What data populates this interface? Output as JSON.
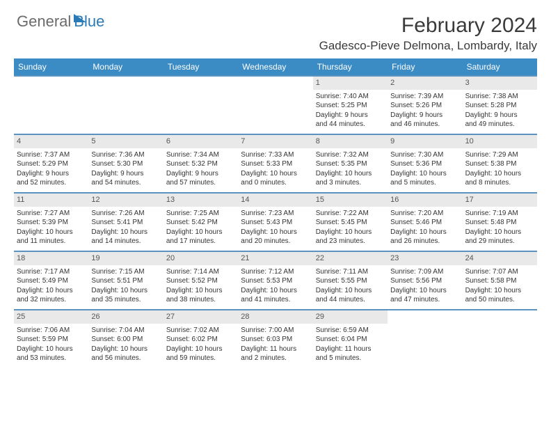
{
  "brand": {
    "word1": "General",
    "word2": "Blue"
  },
  "title": "February 2024",
  "location": "Gadesco-Pieve Delmona, Lombardy, Italy",
  "colors": {
    "header_bg": "#3b8bc4",
    "week_border": "#5b92bf",
    "daynum_bg": "#e9e9e9",
    "brand_blue": "#2a7ab8",
    "brand_gray": "#6b6b6b"
  },
  "typography": {
    "title_fontsize": 30,
    "location_fontsize": 17,
    "weekday_fontsize": 12,
    "cell_fontsize": 10
  },
  "weekdays": [
    "Sunday",
    "Monday",
    "Tuesday",
    "Wednesday",
    "Thursday",
    "Friday",
    "Saturday"
  ],
  "weeks": [
    [
      {
        "empty": true
      },
      {
        "empty": true
      },
      {
        "empty": true
      },
      {
        "empty": true
      },
      {
        "num": "1",
        "sunrise": "Sunrise: 7:40 AM",
        "sunset": "Sunset: 5:25 PM",
        "day1": "Daylight: 9 hours",
        "day2": "and 44 minutes."
      },
      {
        "num": "2",
        "sunrise": "Sunrise: 7:39 AM",
        "sunset": "Sunset: 5:26 PM",
        "day1": "Daylight: 9 hours",
        "day2": "and 46 minutes."
      },
      {
        "num": "3",
        "sunrise": "Sunrise: 7:38 AM",
        "sunset": "Sunset: 5:28 PM",
        "day1": "Daylight: 9 hours",
        "day2": "and 49 minutes."
      }
    ],
    [
      {
        "num": "4",
        "sunrise": "Sunrise: 7:37 AM",
        "sunset": "Sunset: 5:29 PM",
        "day1": "Daylight: 9 hours",
        "day2": "and 52 minutes."
      },
      {
        "num": "5",
        "sunrise": "Sunrise: 7:36 AM",
        "sunset": "Sunset: 5:30 PM",
        "day1": "Daylight: 9 hours",
        "day2": "and 54 minutes."
      },
      {
        "num": "6",
        "sunrise": "Sunrise: 7:34 AM",
        "sunset": "Sunset: 5:32 PM",
        "day1": "Daylight: 9 hours",
        "day2": "and 57 minutes."
      },
      {
        "num": "7",
        "sunrise": "Sunrise: 7:33 AM",
        "sunset": "Sunset: 5:33 PM",
        "day1": "Daylight: 10 hours",
        "day2": "and 0 minutes."
      },
      {
        "num": "8",
        "sunrise": "Sunrise: 7:32 AM",
        "sunset": "Sunset: 5:35 PM",
        "day1": "Daylight: 10 hours",
        "day2": "and 3 minutes."
      },
      {
        "num": "9",
        "sunrise": "Sunrise: 7:30 AM",
        "sunset": "Sunset: 5:36 PM",
        "day1": "Daylight: 10 hours",
        "day2": "and 5 minutes."
      },
      {
        "num": "10",
        "sunrise": "Sunrise: 7:29 AM",
        "sunset": "Sunset: 5:38 PM",
        "day1": "Daylight: 10 hours",
        "day2": "and 8 minutes."
      }
    ],
    [
      {
        "num": "11",
        "sunrise": "Sunrise: 7:27 AM",
        "sunset": "Sunset: 5:39 PM",
        "day1": "Daylight: 10 hours",
        "day2": "and 11 minutes."
      },
      {
        "num": "12",
        "sunrise": "Sunrise: 7:26 AM",
        "sunset": "Sunset: 5:41 PM",
        "day1": "Daylight: 10 hours",
        "day2": "and 14 minutes."
      },
      {
        "num": "13",
        "sunrise": "Sunrise: 7:25 AM",
        "sunset": "Sunset: 5:42 PM",
        "day1": "Daylight: 10 hours",
        "day2": "and 17 minutes."
      },
      {
        "num": "14",
        "sunrise": "Sunrise: 7:23 AM",
        "sunset": "Sunset: 5:43 PM",
        "day1": "Daylight: 10 hours",
        "day2": "and 20 minutes."
      },
      {
        "num": "15",
        "sunrise": "Sunrise: 7:22 AM",
        "sunset": "Sunset: 5:45 PM",
        "day1": "Daylight: 10 hours",
        "day2": "and 23 minutes."
      },
      {
        "num": "16",
        "sunrise": "Sunrise: 7:20 AM",
        "sunset": "Sunset: 5:46 PM",
        "day1": "Daylight: 10 hours",
        "day2": "and 26 minutes."
      },
      {
        "num": "17",
        "sunrise": "Sunrise: 7:19 AM",
        "sunset": "Sunset: 5:48 PM",
        "day1": "Daylight: 10 hours",
        "day2": "and 29 minutes."
      }
    ],
    [
      {
        "num": "18",
        "sunrise": "Sunrise: 7:17 AM",
        "sunset": "Sunset: 5:49 PM",
        "day1": "Daylight: 10 hours",
        "day2": "and 32 minutes."
      },
      {
        "num": "19",
        "sunrise": "Sunrise: 7:15 AM",
        "sunset": "Sunset: 5:51 PM",
        "day1": "Daylight: 10 hours",
        "day2": "and 35 minutes."
      },
      {
        "num": "20",
        "sunrise": "Sunrise: 7:14 AM",
        "sunset": "Sunset: 5:52 PM",
        "day1": "Daylight: 10 hours",
        "day2": "and 38 minutes."
      },
      {
        "num": "21",
        "sunrise": "Sunrise: 7:12 AM",
        "sunset": "Sunset: 5:53 PM",
        "day1": "Daylight: 10 hours",
        "day2": "and 41 minutes."
      },
      {
        "num": "22",
        "sunrise": "Sunrise: 7:11 AM",
        "sunset": "Sunset: 5:55 PM",
        "day1": "Daylight: 10 hours",
        "day2": "and 44 minutes."
      },
      {
        "num": "23",
        "sunrise": "Sunrise: 7:09 AM",
        "sunset": "Sunset: 5:56 PM",
        "day1": "Daylight: 10 hours",
        "day2": "and 47 minutes."
      },
      {
        "num": "24",
        "sunrise": "Sunrise: 7:07 AM",
        "sunset": "Sunset: 5:58 PM",
        "day1": "Daylight: 10 hours",
        "day2": "and 50 minutes."
      }
    ],
    [
      {
        "num": "25",
        "sunrise": "Sunrise: 7:06 AM",
        "sunset": "Sunset: 5:59 PM",
        "day1": "Daylight: 10 hours",
        "day2": "and 53 minutes."
      },
      {
        "num": "26",
        "sunrise": "Sunrise: 7:04 AM",
        "sunset": "Sunset: 6:00 PM",
        "day1": "Daylight: 10 hours",
        "day2": "and 56 minutes."
      },
      {
        "num": "27",
        "sunrise": "Sunrise: 7:02 AM",
        "sunset": "Sunset: 6:02 PM",
        "day1": "Daylight: 10 hours",
        "day2": "and 59 minutes."
      },
      {
        "num": "28",
        "sunrise": "Sunrise: 7:00 AM",
        "sunset": "Sunset: 6:03 PM",
        "day1": "Daylight: 11 hours",
        "day2": "and 2 minutes."
      },
      {
        "num": "29",
        "sunrise": "Sunrise: 6:59 AM",
        "sunset": "Sunset: 6:04 PM",
        "day1": "Daylight: 11 hours",
        "day2": "and 5 minutes."
      },
      {
        "empty": true
      },
      {
        "empty": true
      }
    ]
  ]
}
